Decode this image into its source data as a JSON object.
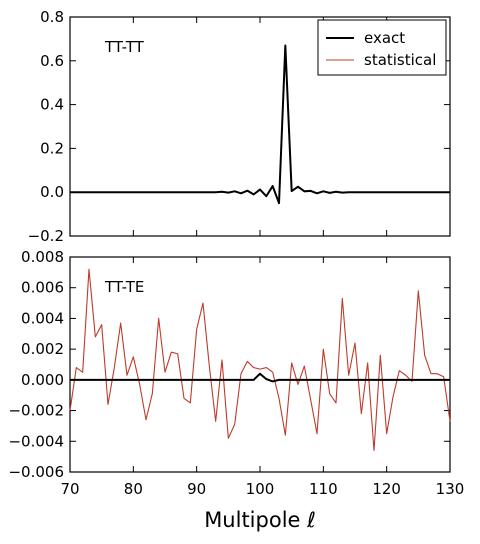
{
  "chart_data": {
    "type": "line",
    "shared_x": [
      70,
      71,
      72,
      73,
      74,
      75,
      76,
      77,
      78,
      79,
      80,
      81,
      82,
      83,
      84,
      85,
      86,
      87,
      88,
      89,
      90,
      91,
      92,
      93,
      94,
      95,
      96,
      97,
      98,
      99,
      100,
      101,
      102,
      103,
      104,
      105,
      106,
      107,
      108,
      109,
      110,
      111,
      112,
      113,
      114,
      115,
      116,
      117,
      118,
      119,
      120,
      121,
      122,
      123,
      124,
      125,
      126,
      127,
      128,
      129,
      130
    ],
    "x_ticks": [
      70,
      80,
      90,
      100,
      110,
      120,
      130
    ],
    "xlim": [
      70,
      130
    ],
    "xlabel": "Multipole ℓ",
    "panels": [
      {
        "annotation": "TT-TT",
        "ylim": [
          -0.2,
          0.8
        ],
        "y_ticks": [
          -0.2,
          0.0,
          0.2,
          0.4,
          0.6,
          0.8
        ],
        "y_tick_labels": [
          "−0.2",
          "0.0",
          "0.2",
          "0.4",
          "0.6",
          "0.8"
        ],
        "legend": {
          "placement": "upper-right",
          "entries": [
            "exact",
            "statistical"
          ]
        },
        "series": [
          {
            "name": "exact",
            "color": "#000000",
            "values": [
              0,
              0,
              0,
              0,
              0,
              0,
              0,
              0,
              0,
              0,
              0,
              0,
              0,
              0,
              0,
              0,
              0,
              0,
              0,
              0,
              0,
              0,
              0,
              0,
              0.002,
              -0.002,
              0.004,
              -0.005,
              0.007,
              -0.01,
              0.012,
              -0.018,
              0.028,
              -0.05,
              0.67,
              0.005,
              0.025,
              0.004,
              0.006,
              -0.005,
              0.004,
              -0.003,
              0.002,
              -0.002,
              0,
              0,
              0,
              0,
              0,
              0,
              0,
              0,
              0,
              0,
              0,
              0,
              0,
              0,
              0,
              0,
              0
            ]
          },
          {
            "name": "statistical",
            "color": "#c0392b",
            "values": [
              0,
              0,
              0,
              0,
              0,
              0,
              0,
              0,
              0,
              0,
              0,
              0,
              0,
              0,
              0,
              0,
              0,
              0,
              0,
              0,
              0,
              0,
              0,
              0,
              0.003,
              -0.003,
              0.005,
              -0.006,
              0.008,
              -0.012,
              0.015,
              -0.02,
              0.03,
              -0.05,
              0.66,
              0.007,
              0.022,
              0.006,
              0.008,
              -0.006,
              0.005,
              -0.004,
              0.003,
              -0.002,
              0,
              0,
              0,
              0,
              0,
              0,
              0,
              0,
              0,
              0,
              0,
              0,
              0,
              0,
              0,
              0,
              0
            ]
          }
        ]
      },
      {
        "annotation": "TT-TE",
        "ylim": [
          -0.006,
          0.008
        ],
        "y_ticks": [
          -0.006,
          -0.004,
          -0.002,
          0.0,
          0.002,
          0.004,
          0.006,
          0.008
        ],
        "y_tick_labels": [
          "−0.006",
          "−0.004",
          "−0.002",
          "0.000",
          "0.002",
          "0.004",
          "0.006",
          "0.008"
        ],
        "series": [
          {
            "name": "exact",
            "color": "#000000",
            "values": [
              0,
              0,
              0,
              0,
              0,
              0,
              0,
              0,
              0,
              0,
              0,
              0,
              0,
              0,
              0,
              0,
              0,
              0,
              0,
              0,
              0,
              0,
              0,
              0,
              0,
              0,
              0,
              0,
              0,
              0,
              0.0004,
              5e-05,
              -0.0001,
              0,
              0,
              0,
              0,
              0,
              0,
              0,
              0,
              0,
              0,
              0,
              0,
              0,
              0,
              0,
              0,
              0,
              0,
              0,
              0,
              0,
              0,
              0,
              0,
              0,
              0,
              0,
              0
            ]
          },
          {
            "name": "statistical",
            "color": "#c0392b",
            "values": [
              -0.002,
              0.0008,
              0.0005,
              0.0072,
              0.0028,
              0.0036,
              -0.0016,
              0.0008,
              0.0037,
              0.0003,
              0.0015,
              -0.0003,
              -0.0026,
              -0.0009,
              0.004,
              0.0005,
              0.0018,
              0.0017,
              -0.0012,
              -0.0015,
              0.0033,
              0.005,
              0.0009,
              -0.0027,
              0.0013,
              -0.0038,
              -0.0029,
              0.0004,
              0.0012,
              0.0008,
              0.0007,
              0.0008,
              0.0005,
              -0.0012,
              -0.0036,
              0.0011,
              -0.0003,
              0.0009,
              -0.0013,
              -0.0035,
              0.002,
              -0.0009,
              -0.0015,
              0.0053,
              0.0003,
              0.0024,
              -0.0022,
              0.0011,
              -0.0046,
              0.0016,
              -0.0035,
              -0.0011,
              0.0006,
              0.0003,
              -0.0001,
              0.0058,
              0.0016,
              0.0004,
              0.0004,
              0.0002,
              -0.0027
            ]
          }
        ]
      }
    ]
  }
}
